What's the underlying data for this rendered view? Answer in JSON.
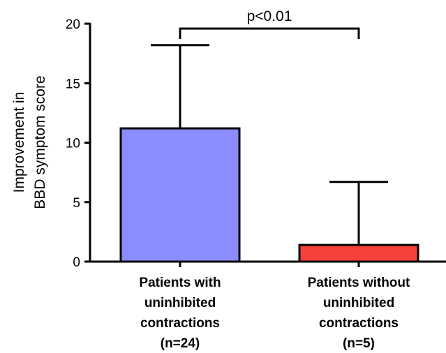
{
  "chart_data": {
    "type": "bar",
    "title": "",
    "xlabel": "",
    "ylabel_lines": [
      "Improvement in",
      "BBD symptom score"
    ],
    "categories": [
      [
        "Patients with",
        "uninhibited",
        "contractions",
        "(n=24)"
      ],
      [
        "Patients without",
        "uninhibited",
        "contractions",
        "(n=5)"
      ]
    ],
    "values": [
      11.2,
      1.4
    ],
    "error_upper": [
      18.2,
      6.7
    ],
    "bar_colors": [
      "#8a8cff",
      "#f5403b"
    ],
    "ylim": [
      0,
      20
    ],
    "yticks": [
      "0",
      "5",
      "10",
      "15",
      "20"
    ],
    "grid": false,
    "legend": "none",
    "annotation": {
      "text": "p<0.01",
      "type": "bracket",
      "between": [
        0,
        1
      ]
    }
  }
}
